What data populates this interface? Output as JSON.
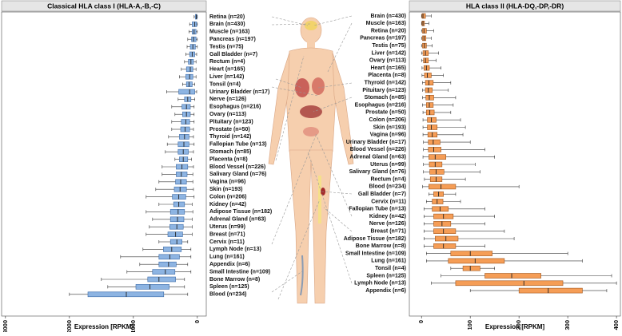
{
  "chart_data": [
    {
      "type": "box",
      "title": "Classical HLA class I (HLA-A,-B,-C)",
      "xlabel": "Expression [RPKM]",
      "color": "#8db4e2",
      "edge_color": "#3a6aa8",
      "xlim": [
        3060,
        -140
      ],
      "xticks": [
        3000,
        2000,
        1000,
        0
      ],
      "categories": [
        "Retina (n=20)",
        "Brain (n=430)",
        "Muscle (n=163)",
        "Pancreas (n=197)",
        "Testis (n=75)",
        "Gall Bladder (n=7)",
        "Rectum (n=4)",
        "Heart (n=165)",
        "Liver (n=142)",
        "Tonsil (n=4)",
        "Urinary Bladder (n=17)",
        "Nerve (n=126)",
        "Esophagus (n=216)",
        "Ovary (n=113)",
        "Pituitary (n=123)",
        "Prostate (n=50)",
        "Thyroid (n=142)",
        "Fallopian Tube (n=13)",
        "Stomach (n=85)",
        "Placenta (n=8)",
        "Blood Vessel (n=226)",
        "Salivary Gland (n=76)",
        "Vagina (n=96)",
        "Skin (n=193)",
        "Colon (n=206)",
        "Kidney (n=42)",
        "Adipose Tissue (n=182)",
        "Adrenal Gland (n=63)",
        "Uterus (n=99)",
        "Breast (n=71)",
        "Cervix (n=11)",
        "Lymph Node (n=13)",
        "Lung (n=161)",
        "Appendix (n=6)",
        "Small Intestine (n=109)",
        "Bone Marrow (n=8)",
        "Spleen (n=125)",
        "Blood (n=234)"
      ],
      "min": [
        0,
        0,
        0,
        0,
        0,
        10,
        20,
        20,
        20,
        40,
        10,
        40,
        50,
        50,
        50,
        60,
        60,
        50,
        60,
        90,
        60,
        70,
        70,
        60,
        50,
        80,
        70,
        80,
        80,
        80,
        150,
        100,
        100,
        150,
        100,
        200,
        200,
        150
      ],
      "q1": [
        5,
        10,
        20,
        20,
        30,
        40,
        60,
        70,
        70,
        80,
        40,
        100,
        110,
        110,
        120,
        120,
        130,
        130,
        140,
        150,
        150,
        160,
        170,
        170,
        180,
        200,
        200,
        210,
        220,
        230,
        240,
        250,
        280,
        330,
        350,
        340,
        440,
        525
      ],
      "median": [
        15,
        40,
        50,
        60,
        70,
        80,
        100,
        110,
        120,
        130,
        120,
        150,
        170,
        170,
        180,
        190,
        200,
        210,
        220,
        220,
        240,
        250,
        260,
        270,
        290,
        290,
        300,
        310,
        320,
        340,
        320,
        400,
        430,
        450,
        500,
        600,
        740,
        1110
      ],
      "q3": [
        30,
        80,
        80,
        90,
        110,
        120,
        140,
        170,
        180,
        170,
        290,
        200,
        240,
        230,
        250,
        260,
        280,
        300,
        300,
        280,
        330,
        330,
        340,
        360,
        390,
        370,
        420,
        420,
        430,
        460,
        420,
        530,
        600,
        600,
        700,
        775,
        960,
        1710
      ],
      "max": [
        50,
        120,
        130,
        150,
        160,
        180,
        200,
        250,
        280,
        230,
        480,
        300,
        400,
        350,
        400,
        400,
        450,
        470,
        500,
        350,
        550,
        550,
        600,
        650,
        800,
        600,
        800,
        700,
        750,
        800,
        600,
        850,
        1200,
        900,
        1100,
        1500,
        1400,
        2000
      ]
    },
    {
      "type": "box",
      "title": "HLA class II (HLA-DQ,-DP,-DR)",
      "xlabel": "Expression [RPKM]",
      "color": "#f59d56",
      "edge_color": "#a0541a",
      "xlim": [
        -25,
        408
      ],
      "xticks": [
        0,
        100,
        200,
        300,
        400
      ],
      "categories": [
        "Brain (n=430)",
        "Muscle (n=163)",
        "Retina (n=20)",
        "Pancreas (n=197)",
        "Testis (n=75)",
        "Liver (n=142)",
        "Ovary (n=113)",
        "Heart (n=165)",
        "Placenta (n=8)",
        "Thyroid (n=142)",
        "Pituitary (n=123)",
        "Stomach (n=85)",
        "Esophagus (n=216)",
        "Prostate (n=50)",
        "Colon (n=206)",
        "Skin (n=193)",
        "Vagina (n=96)",
        "Urinary Bladder (n=17)",
        "Blood Vessel (n=226)",
        "Adrenal Gland (n=63)",
        "Uterus (n=99)",
        "Salivary Gland (n=76)",
        "Rectum (n=4)",
        "Blood (n=234)",
        "Gall Bladder (n=7)",
        "Cervix (n=11)",
        "Fallopian Tube (n=13)",
        "Kidney (n=42)",
        "Nerve (n=126)",
        "Breast (n=71)",
        "Adipose Tissue (n=182)",
        "Bone Marrow (n=8)",
        "Small Intestine (n=109)",
        "Lung (n=161)",
        "Tonsil (n=4)",
        "Spleen (n=125)",
        "Lymph Node (n=13)",
        "Appendix (n=6)"
      ],
      "min": [
        0,
        0,
        0,
        0,
        0,
        0,
        0,
        1,
        1,
        2,
        2,
        2,
        2,
        3,
        3,
        3,
        3,
        4,
        4,
        3,
        4,
        4,
        6,
        2,
        15,
        10,
        5,
        5,
        5,
        5,
        5,
        5,
        10,
        10,
        60,
        40,
        20,
        100
      ],
      "q1": [
        1,
        1,
        2,
        2,
        2,
        3,
        4,
        5,
        6,
        8,
        8,
        9,
        10,
        10,
        12,
        12,
        13,
        14,
        14,
        15,
        16,
        17,
        18,
        15,
        25,
        22,
        22,
        25,
        25,
        25,
        28,
        25,
        60,
        55,
        85,
        130,
        70,
        200
      ],
      "median": [
        3,
        3,
        5,
        5,
        6,
        8,
        8,
        10,
        12,
        15,
        14,
        16,
        16,
        17,
        20,
        20,
        22,
        24,
        25,
        28,
        28,
        30,
        30,
        40,
        35,
        32,
        38,
        45,
        42,
        45,
        50,
        45,
        100,
        110,
        100,
        185,
        210,
        260
      ],
      "q3": [
        8,
        6,
        10,
        9,
        10,
        14,
        14,
        16,
        20,
        24,
        22,
        25,
        24,
        26,
        30,
        32,
        32,
        38,
        40,
        50,
        42,
        46,
        42,
        70,
        45,
        44,
        55,
        65,
        60,
        70,
        75,
        70,
        145,
        170,
        120,
        245,
        290,
        330
      ],
      "max": [
        20,
        15,
        25,
        20,
        22,
        35,
        30,
        40,
        45,
        60,
        55,
        70,
        65,
        60,
        80,
        90,
        85,
        100,
        130,
        150,
        110,
        120,
        90,
        200,
        70,
        80,
        130,
        150,
        130,
        170,
        190,
        130,
        300,
        330,
        150,
        390,
        400,
        380
      ]
    }
  ]
}
